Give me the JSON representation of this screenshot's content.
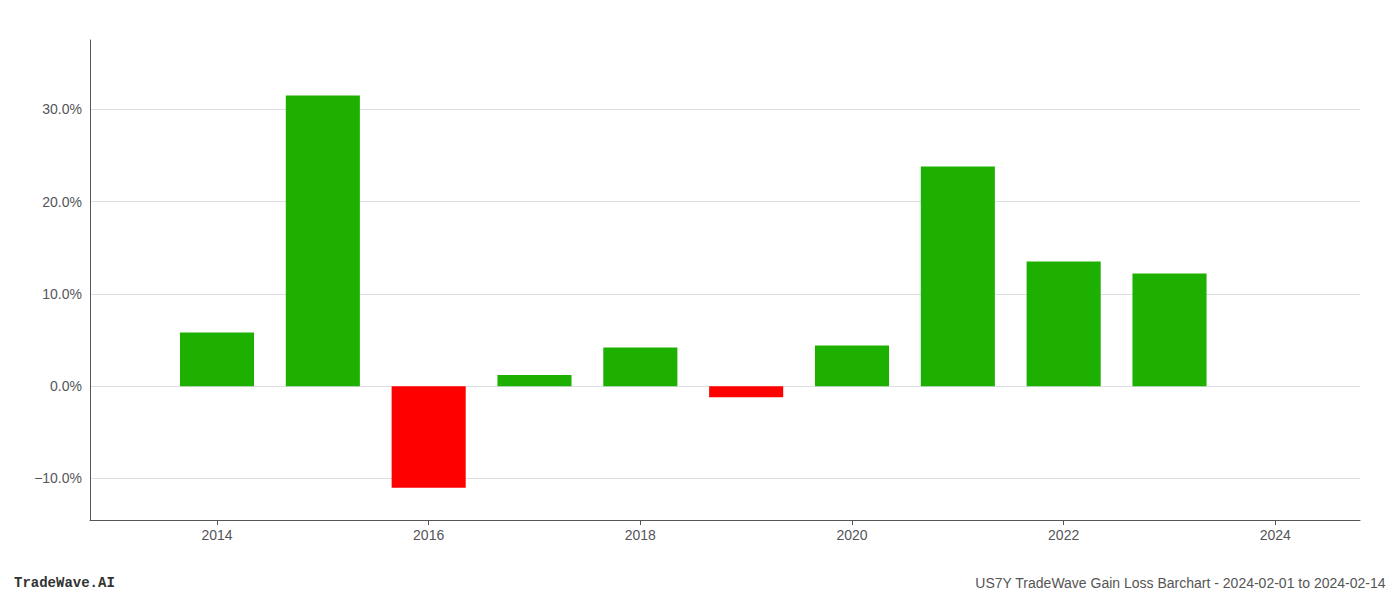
{
  "chart_data": {
    "type": "bar",
    "annotations": [
      "TradeWave.AI",
      "US7Y TradeWave Gain Loss Barchart - 2024-02-01 to 2024-02-14"
    ],
    "x": [
      2014,
      2015,
      2016,
      2017,
      2018,
      2019,
      2020,
      2021,
      2022,
      2023
    ],
    "values": [
      0.058,
      0.315,
      -0.11,
      0.012,
      0.042,
      -0.012,
      0.044,
      0.238,
      0.135,
      0.122
    ],
    "colors": [
      "#1db000",
      "#1db000",
      "#ff0000",
      "#1db000",
      "#1db000",
      "#ff0000",
      "#1db000",
      "#1db000",
      "#1db000",
      "#1db000"
    ],
    "xlim": [
      2012.8,
      2024.8
    ],
    "xticks": [
      2014,
      2016,
      2018,
      2020,
      2022,
      2024
    ],
    "ylim": [
      -0.145,
      0.375
    ],
    "yticks": [
      {
        "value": -0.1,
        "label": "−10.0%"
      },
      {
        "value": 0.0,
        "label": "0.0%"
      },
      {
        "value": 0.1,
        "label": "10.0%"
      },
      {
        "value": 0.2,
        "label": "20.0%"
      },
      {
        "value": 0.3,
        "label": "30.0%"
      }
    ],
    "grid": true
  }
}
